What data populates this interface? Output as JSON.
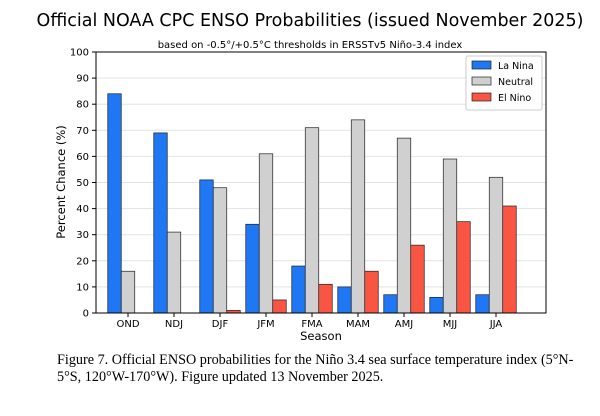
{
  "chart_data": {
    "type": "bar",
    "title": "Official NOAA CPC ENSO Probabilities (issued November 2025)",
    "subtitle": "based on -0.5°/+0.5°C thresholds in ERSSTv5 Niño-3.4 index",
    "xlabel": "Season",
    "ylabel": "Percent Chance (%)",
    "ylim": [
      0,
      100
    ],
    "yticks": [
      0,
      10,
      20,
      30,
      40,
      50,
      60,
      70,
      80,
      90,
      100
    ],
    "grid": true,
    "legend_position": "top-right",
    "categories": [
      "OND",
      "NDJ",
      "DJF",
      "JFM",
      "FMA",
      "MAM",
      "AMJ",
      "MJJ",
      "JJA"
    ],
    "series": [
      {
        "name": "La Nina",
        "color": "#1f77f4",
        "values": [
          84,
          69,
          51,
          34,
          18,
          10,
          7,
          6,
          7
        ]
      },
      {
        "name": "Neutral",
        "color": "#d0d0d0",
        "values": [
          16,
          31,
          48,
          61,
          71,
          74,
          67,
          59,
          52
        ]
      },
      {
        "name": "El Nino",
        "color": "#fa5543",
        "values": [
          0,
          0,
          1,
          5,
          11,
          16,
          26,
          35,
          41
        ]
      }
    ]
  },
  "caption": "Figure 7. Official ENSO probabilities for the Niño 3.4 sea surface temperature index (5°N-5°S, 120°W-170°W). Figure updated 13 November 2025."
}
